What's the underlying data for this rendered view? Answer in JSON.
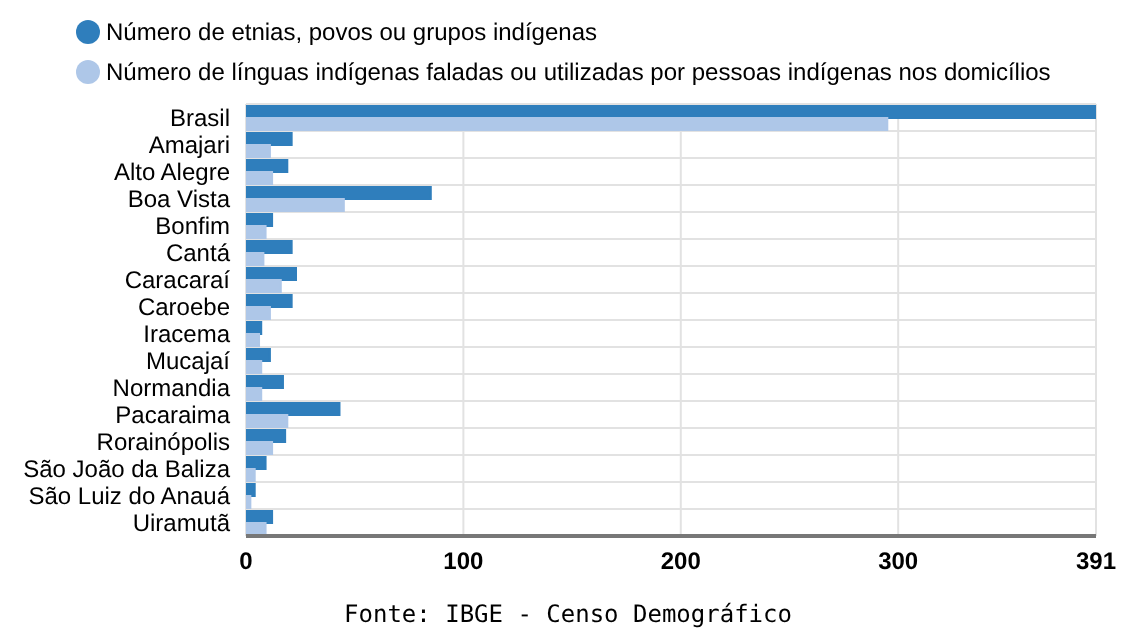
{
  "chart_data": {
    "type": "bar",
    "orientation": "horizontal",
    "categories": [
      "Brasil",
      "Amajari",
      "Alto Alegre",
      "Boa Vista",
      "Bonfim",
      "Cantá",
      "Caracaraí",
      "Caroebe",
      "Iracema",
      "Mucajaí",
      "Normandia",
      "Pacaraima",
      "Rorainópolis",
      "São João da Baliza",
      "São Luiz do Anauá",
      "Uiramutã"
    ],
    "series": [
      {
        "name": "Número de etnias, povos ou grupos indígenas",
        "color": "#2f7ebc",
        "values": [
          391,
          21,
          19,
          85,
          12,
          21,
          23,
          21,
          7,
          11,
          17,
          43,
          18,
          9,
          4,
          12
        ]
      },
      {
        "name": "Número de línguas indígenas faladas ou utilizadas por pessoas indígenas nos domicílios",
        "color": "#aec7e8",
        "values": [
          295,
          11,
          12,
          45,
          9,
          8,
          16,
          11,
          6,
          7,
          7,
          19,
          12,
          4,
          2,
          9
        ]
      }
    ],
    "xlim": [
      0,
      391
    ],
    "xticks": [
      0,
      100,
      200,
      300,
      391
    ],
    "grid": true,
    "legend": "top left",
    "annotations": [
      "Fonte: IBGE - Censo Demográfico"
    ]
  }
}
